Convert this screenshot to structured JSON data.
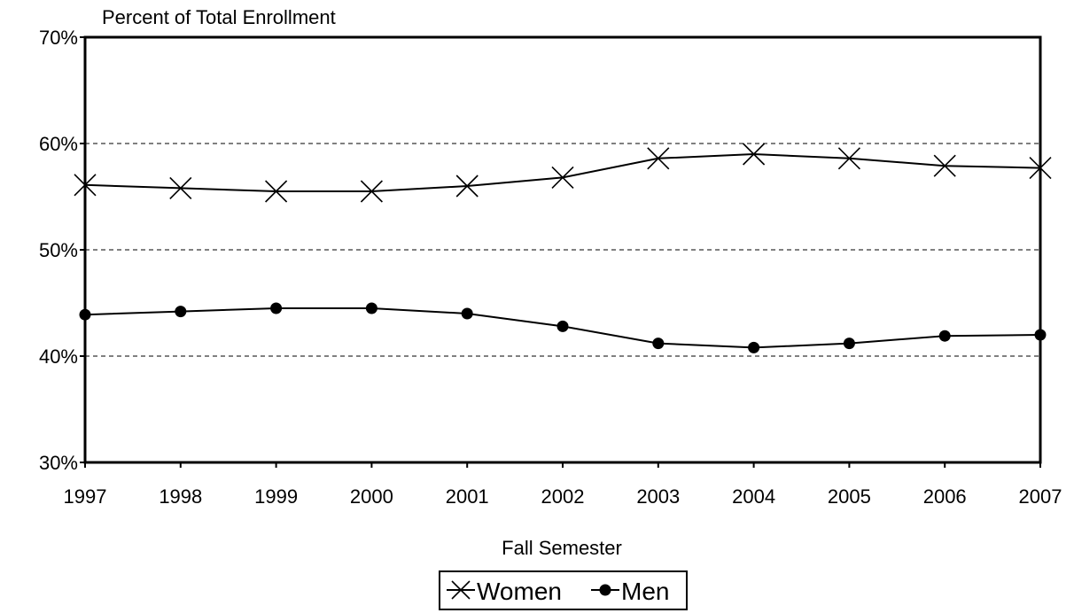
{
  "chart_data": {
    "type": "line",
    "ylabel": "Percent of Total Enrollment",
    "xlabel": "Fall Semester",
    "x": [
      "1997",
      "1998",
      "1999",
      "2000",
      "2001",
      "2002",
      "2003",
      "2004",
      "2005",
      "2006",
      "2007"
    ],
    "ylim": [
      30,
      70
    ],
    "yticks": [
      30,
      40,
      50,
      60,
      70
    ],
    "ytick_labels": [
      "30%",
      "40%",
      "50%",
      "60%",
      "70%"
    ],
    "grid": "dashed horizontal at 40%, 50%, 60%",
    "legend": "bottom-center",
    "series": [
      {
        "name": "Women",
        "marker": "x",
        "color": "#000000",
        "values": [
          56.1,
          55.8,
          55.5,
          55.5,
          56.0,
          56.8,
          58.6,
          59.0,
          58.6,
          57.9,
          57.7
        ]
      },
      {
        "name": "Men",
        "marker": "circle",
        "color": "#000000",
        "values": [
          43.9,
          44.2,
          44.5,
          44.5,
          44.0,
          42.8,
          41.2,
          40.8,
          41.2,
          41.9,
          42.0
        ]
      }
    ]
  }
}
